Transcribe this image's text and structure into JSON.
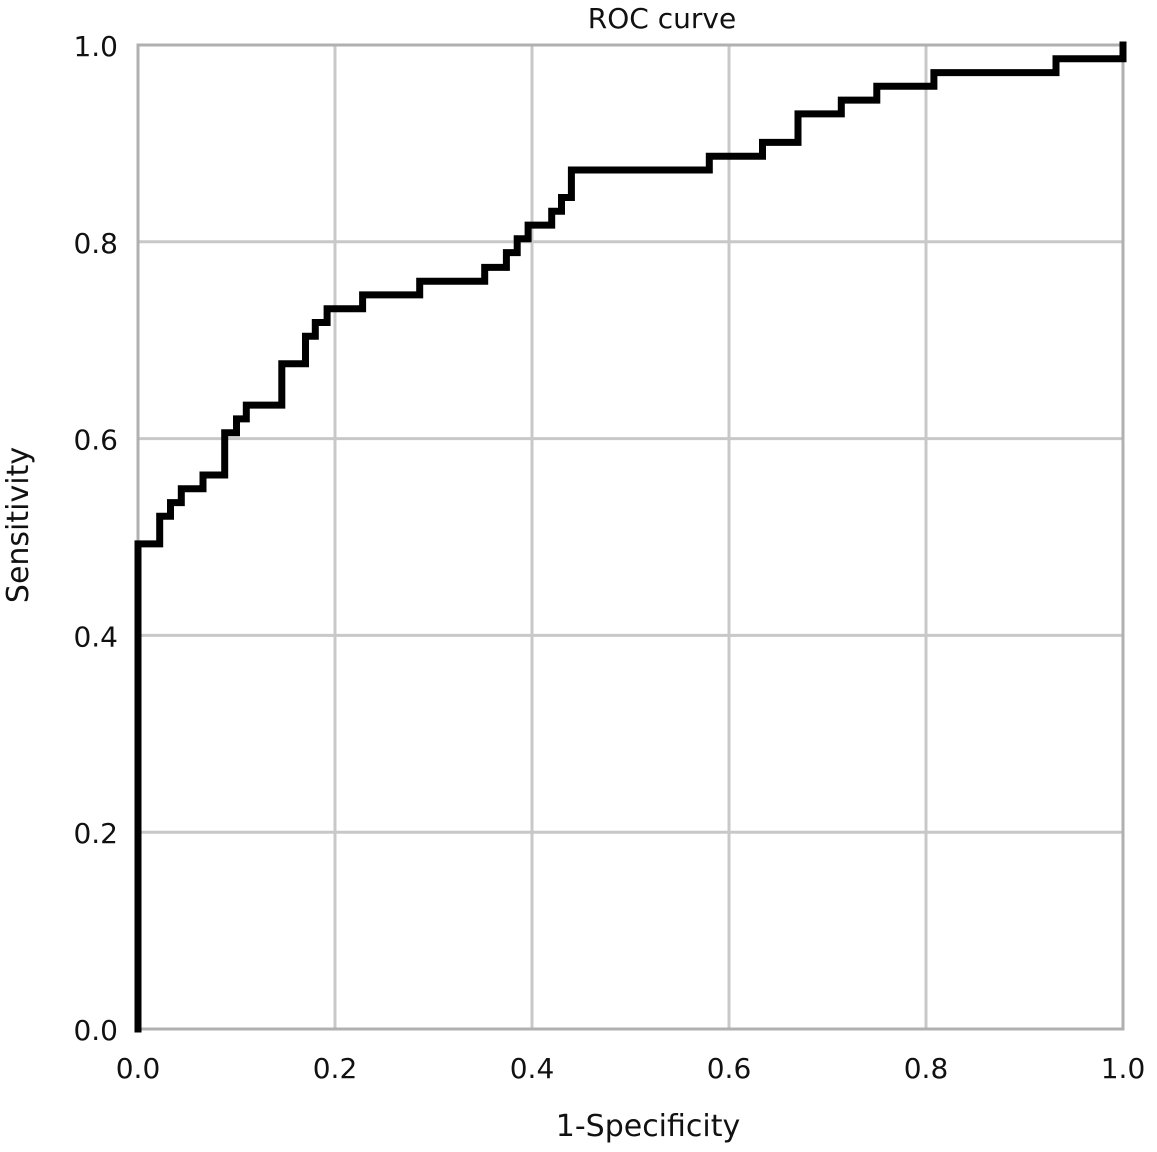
{
  "chart_data": {
    "type": "line",
    "title": "ROC curve",
    "xlabel": "1-Specificity",
    "ylabel": "Sensitivity",
    "xlim": [
      0,
      1
    ],
    "ylim": [
      0,
      1
    ],
    "x_ticks": [
      "0.0",
      "0.2",
      "0.4",
      "0.6",
      "0.8",
      "1.0"
    ],
    "y_ticks": [
      "0.0",
      "0.2",
      "0.4",
      "0.6",
      "0.8",
      "1.0"
    ],
    "grid": true,
    "step_curve": true,
    "points": [
      [
        0.0,
        0.0
      ],
      [
        0.0,
        0.493
      ],
      [
        0.022,
        0.493
      ],
      [
        0.022,
        0.521
      ],
      [
        0.033,
        0.521
      ],
      [
        0.033,
        0.535
      ],
      [
        0.044,
        0.535
      ],
      [
        0.044,
        0.549
      ],
      [
        0.066,
        0.549
      ],
      [
        0.066,
        0.563
      ],
      [
        0.088,
        0.563
      ],
      [
        0.088,
        0.606
      ],
      [
        0.1,
        0.606
      ],
      [
        0.1,
        0.62
      ],
      [
        0.11,
        0.62
      ],
      [
        0.11,
        0.634
      ],
      [
        0.146,
        0.634
      ],
      [
        0.146,
        0.676
      ],
      [
        0.17,
        0.676
      ],
      [
        0.17,
        0.704
      ],
      [
        0.18,
        0.704
      ],
      [
        0.18,
        0.718
      ],
      [
        0.192,
        0.718
      ],
      [
        0.192,
        0.732
      ],
      [
        0.228,
        0.732
      ],
      [
        0.228,
        0.746
      ],
      [
        0.286,
        0.746
      ],
      [
        0.286,
        0.76
      ],
      [
        0.352,
        0.76
      ],
      [
        0.352,
        0.774
      ],
      [
        0.374,
        0.774
      ],
      [
        0.374,
        0.789
      ],
      [
        0.385,
        0.789
      ],
      [
        0.385,
        0.803
      ],
      [
        0.396,
        0.803
      ],
      [
        0.396,
        0.817
      ],
      [
        0.42,
        0.817
      ],
      [
        0.42,
        0.831
      ],
      [
        0.43,
        0.831
      ],
      [
        0.43,
        0.845
      ],
      [
        0.44,
        0.845
      ],
      [
        0.44,
        0.873
      ],
      [
        0.58,
        0.873
      ],
      [
        0.58,
        0.887
      ],
      [
        0.634,
        0.887
      ],
      [
        0.634,
        0.901
      ],
      [
        0.67,
        0.901
      ],
      [
        0.67,
        0.93
      ],
      [
        0.714,
        0.93
      ],
      [
        0.714,
        0.944
      ],
      [
        0.75,
        0.944
      ],
      [
        0.75,
        0.958
      ],
      [
        0.808,
        0.958
      ],
      [
        0.808,
        0.972
      ],
      [
        0.932,
        0.972
      ],
      [
        0.932,
        0.986
      ],
      [
        1.0,
        0.986
      ],
      [
        1.0,
        1.0
      ]
    ]
  }
}
